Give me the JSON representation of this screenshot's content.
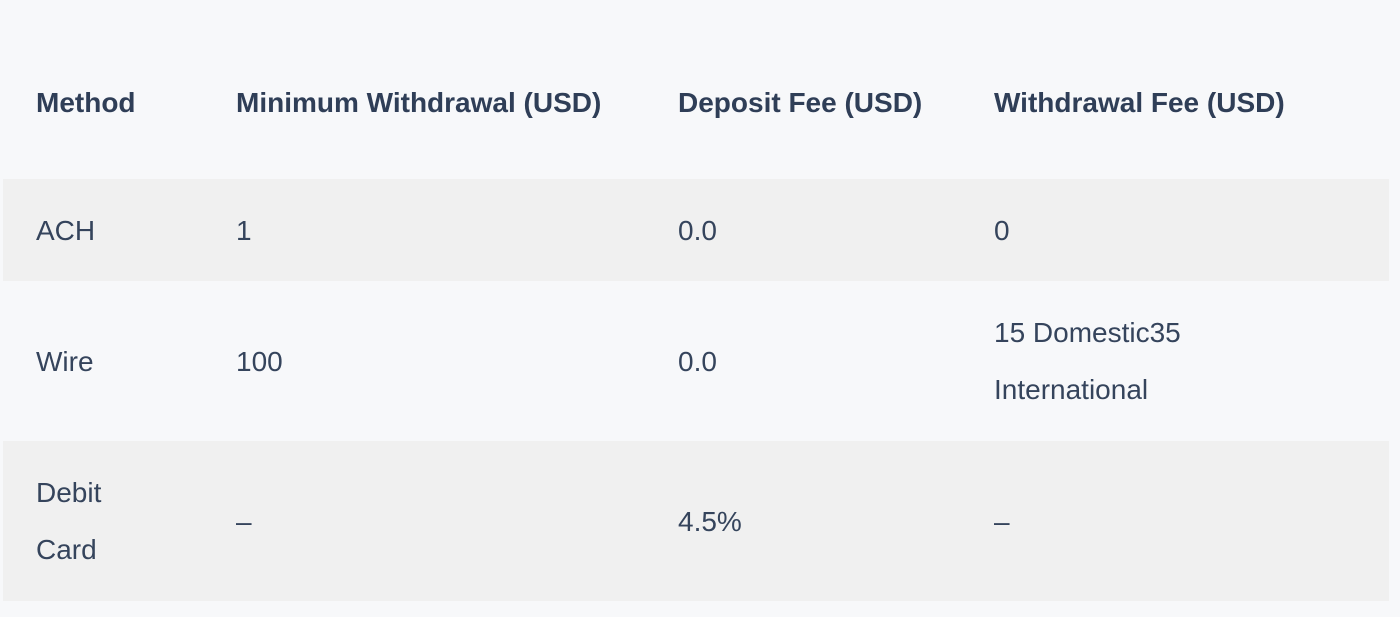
{
  "table": {
    "headers": [
      "Method",
      "Minimum Withdrawal (USD)",
      "Deposit Fee (USD)",
      "Withdrawal Fee (USD)"
    ],
    "rows": [
      {
        "method": "ACH",
        "minimum_withdrawal": "1",
        "deposit_fee": "0.0",
        "withdrawal_fee": "0"
      },
      {
        "method": "Wire",
        "minimum_withdrawal": "100",
        "deposit_fee": "0.0",
        "withdrawal_fee": "15 Domestic35 International"
      },
      {
        "method": "Debit Card",
        "minimum_withdrawal": "–",
        "deposit_fee": "4.5%",
        "withdrawal_fee": "–"
      }
    ]
  },
  "colors": {
    "page_background": "#f7f8fa",
    "shaded_row": "#f0f0f0",
    "text": "#33415a"
  }
}
